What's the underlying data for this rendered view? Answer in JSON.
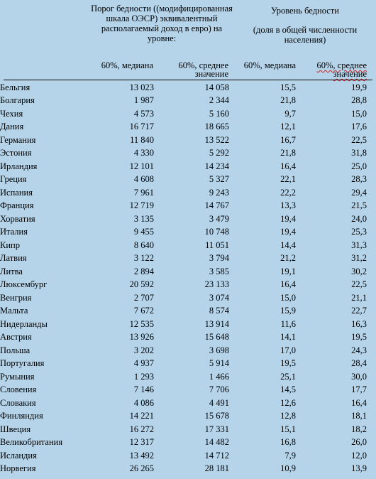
{
  "headers": {
    "threshold_title": "Порог бедности ((модифицированная шкала ОЭСР) эквивалентный располагаемый доход в евро) на уровне:",
    "level_title": "Уровень бедности",
    "level_subtitle": "(доля в общей численности населения)",
    "col1": "60%, медиана",
    "col2": "60%, среднее значение",
    "col3": "60%, медиана",
    "col4": "60%, среднее значение"
  },
  "rows": [
    {
      "country": "Бельгия",
      "v1": "13 023",
      "v2": "14 058",
      "v3": "15,5",
      "v4": "19,9"
    },
    {
      "country": "Болгария",
      "v1": "1 987",
      "v2": "2 344",
      "v3": "21,8",
      "v4": "28,8"
    },
    {
      "country": "Чехия",
      "v1": "4 573",
      "v2": "5 160",
      "v3": "9,7",
      "v4": "15,0"
    },
    {
      "country": "Дания",
      "v1": "16 717",
      "v2": "18 665",
      "v3": "12,1",
      "v4": "17,6"
    },
    {
      "country": "Германия",
      "v1": "11 840",
      "v2": "13 522",
      "v3": "16,7",
      "v4": "22,5"
    },
    {
      "country": "Эстония",
      "v1": "4 330",
      "v2": "5 292",
      "v3": "21,8",
      "v4": "31,8"
    },
    {
      "country": "Ирландия",
      "v1": "12 101",
      "v2": "14 234",
      "v3": "16,4",
      "v4": "25,0"
    },
    {
      "country": "Греция",
      "v1": "4 608",
      "v2": "5 327",
      "v3": "22,1",
      "v4": "28,3"
    },
    {
      "country": "Испания",
      "v1": "7 961",
      "v2": "9 243",
      "v3": "22,2",
      "v4": "29,4"
    },
    {
      "country": "Франция",
      "v1": "12 719",
      "v2": "14 767",
      "v3": "13,3",
      "v4": "21,5"
    },
    {
      "country": "Хорватия",
      "v1": "3 135",
      "v2": "3 479",
      "v3": "19,4",
      "v4": "24,0"
    },
    {
      "country": "Италия",
      "v1": "9 455",
      "v2": "10 748",
      "v3": "19,4",
      "v4": "25,3"
    },
    {
      "country": "Кипр",
      "v1": "8 640",
      "v2": "11 051",
      "v3": "14,4",
      "v4": "31,3"
    },
    {
      "country": "Латвия",
      "v1": "3 122",
      "v2": "3 794",
      "v3": "21,2",
      "v4": "31,2"
    },
    {
      "country": "Литва",
      "v1": "2 894",
      "v2": "3 585",
      "v3": "19,1",
      "v4": "30,2"
    },
    {
      "country": "Люксембург",
      "v1": "20 592",
      "v2": "23 133",
      "v3": "16,4",
      "v4": "22,5"
    },
    {
      "country": "Венгрия",
      "v1": "2 707",
      "v2": "3 074",
      "v3": "15,0",
      "v4": "21,1"
    },
    {
      "country": "Мальта",
      "v1": "7 672",
      "v2": "8 574",
      "v3": "15,9",
      "v4": "22,7"
    },
    {
      "country": "Нидерланды",
      "v1": "12 535",
      "v2": "13 914",
      "v3": "11,6",
      "v4": "16,3"
    },
    {
      "country": "Австрия",
      "v1": "13 926",
      "v2": "15 648",
      "v3": "14,1",
      "v4": "19,5"
    },
    {
      "country": "Польша",
      "v1": "3 202",
      "v2": "3 698",
      "v3": "17,0",
      "v4": "24,3"
    },
    {
      "country": "Португалия",
      "v1": "4 937",
      "v2": "5 914",
      "v3": "19,5",
      "v4": "28,4"
    },
    {
      "country": "Румыния",
      "v1": "1 293",
      "v2": "1 466",
      "v3": "25,1",
      "v4": "30,0"
    },
    {
      "country": "Словения",
      "v1": "7 146",
      "v2": "7 706",
      "v3": "14,5",
      "v4": "17,7"
    },
    {
      "country": "Словакия",
      "v1": "4 086",
      "v2": "4 491",
      "v3": "12,6",
      "v4": "16,4"
    },
    {
      "country": "Финляндия",
      "v1": "14 221",
      "v2": "15 678",
      "v3": "12,8",
      "v4": "18,1"
    },
    {
      "country": "Швеция",
      "v1": "16 272",
      "v2": "17 331",
      "v3": "15,1",
      "v4": "18,2"
    },
    {
      "country": "Великобритания",
      "v1": "12 317",
      "v2": "14 482",
      "v3": "16,8",
      "v4": "26,0"
    },
    {
      "country": "Исландия",
      "v1": "13 492",
      "v2": "14 712",
      "v3": "7,9",
      "v4": "12,0"
    },
    {
      "country": "Норвегия",
      "v1": "26 265",
      "v2": "28 181",
      "v3": "10,9",
      "v4": "13,9"
    }
  ]
}
